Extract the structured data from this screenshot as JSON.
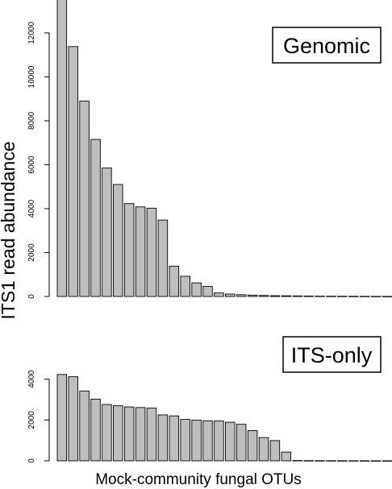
{
  "ylabel": "ITS1 read abundance",
  "xlabel": "Mock-community fungal OTUs",
  "colors": {
    "bar_fill": "#bebebe",
    "bar_stroke": "#000000"
  },
  "chart_data": [
    {
      "type": "bar",
      "label": "Genomic",
      "yticks": [
        0,
        2000,
        4000,
        6000,
        8000,
        10000,
        12000
      ],
      "ylim": [
        0,
        13500
      ],
      "values": [
        13700,
        11380,
        8900,
        7150,
        5850,
        5100,
        4230,
        4080,
        4020,
        3480,
        1380,
        920,
        620,
        460,
        160,
        110,
        80,
        60,
        45,
        35,
        30,
        25,
        20,
        15,
        12,
        10,
        8,
        6,
        5,
        4
      ]
    },
    {
      "type": "bar",
      "label": "ITS-only",
      "yticks": [
        0,
        2000,
        4000
      ],
      "ylim": [
        0,
        4500
      ],
      "values": [
        4230,
        4120,
        3420,
        3020,
        2760,
        2700,
        2640,
        2610,
        2580,
        2250,
        2200,
        2030,
        1990,
        1960,
        1950,
        1890,
        1790,
        1480,
        1140,
        990,
        430,
        15,
        10,
        8,
        6,
        5,
        4,
        3,
        2,
        1
      ]
    }
  ]
}
